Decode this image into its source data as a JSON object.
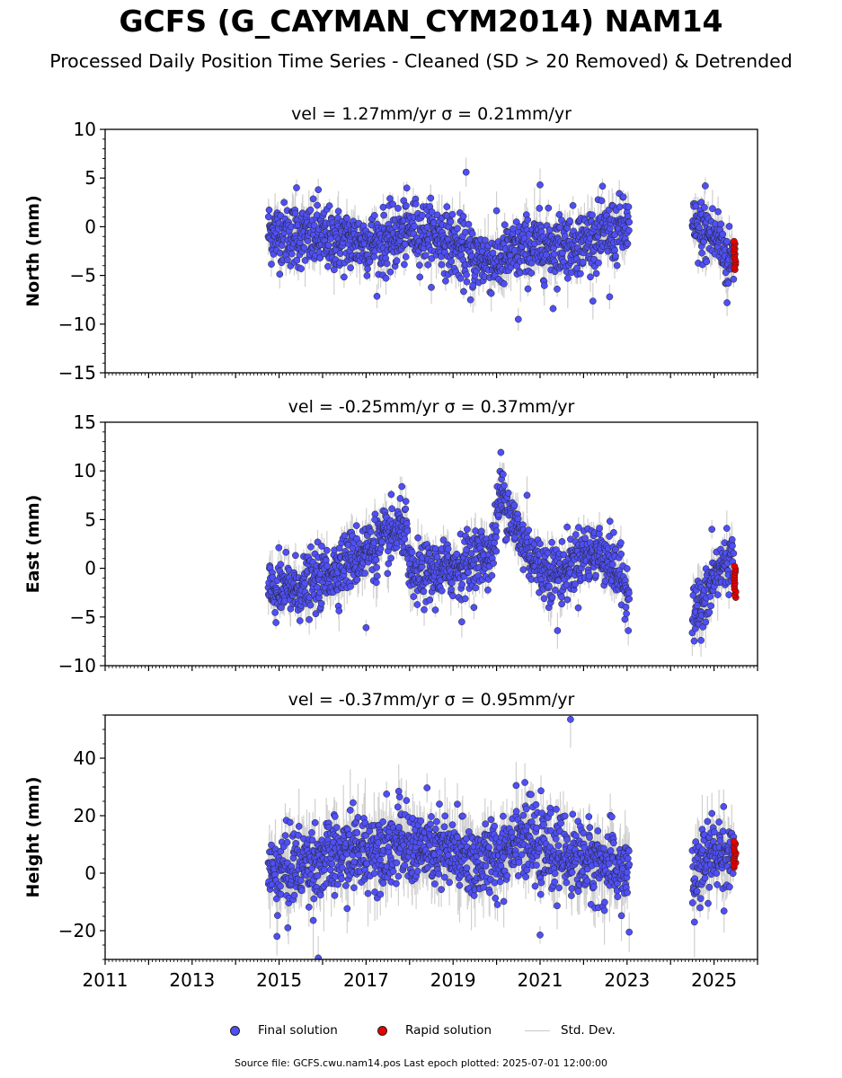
{
  "title": "GCFS (G_CAYMAN_CYM2014) NAM14",
  "subtitle": "Processed Daily Position Time Series - Cleaned (SD > 20 Removed) & Detrended",
  "legend": {
    "final": "Final solution",
    "rapid": "Rapid solution",
    "stddev": "Std. Dev."
  },
  "footer": "Source file: GCFS.cwu.nam14.pos  Last epoch plotted: 2025-07-01 12:00:00",
  "colors": {
    "final": "#4f4ff5",
    "rapid": "#e50000",
    "stddev": "#c8c8c8",
    "marker_edge": "#222222"
  },
  "chart_data": [
    {
      "type": "scatter",
      "title_vel": "vel = 1.27mm/yr",
      "title_sigma": "σ = 0.21mm/yr",
      "ylabel": "North (mm)",
      "xlim": [
        2011,
        2026
      ],
      "ylim": [
        -15,
        10
      ],
      "yticks": [
        -15,
        -10,
        -5,
        0,
        5,
        10
      ],
      "yminor": 1,
      "show_xtick_labels": false,
      "seg1": {
        "start": 2014.75,
        "end": 2023.05
      },
      "seg2": {
        "start": 2024.5,
        "end": 2025.45
      },
      "rapid": {
        "start": 2025.45,
        "end": 2025.5
      },
      "trend": [
        [
          2014.75,
          -0.5
        ],
        [
          2015.5,
          -1.0
        ],
        [
          2016.5,
          -1.5
        ],
        [
          2017.5,
          -1.6
        ],
        [
          2018.0,
          -0.3
        ],
        [
          2018.7,
          -1.0
        ],
        [
          2019.4,
          -3.0
        ],
        [
          2020.0,
          -3.6
        ],
        [
          2020.6,
          -2.2
        ],
        [
          2021.5,
          -1.8
        ],
        [
          2022.0,
          -1.5
        ],
        [
          2022.5,
          -0.8
        ],
        [
          2023.05,
          0.0
        ],
        [
          2024.5,
          -0.2
        ],
        [
          2024.9,
          -0.8
        ],
        [
          2025.1,
          -1.2
        ],
        [
          2025.3,
          -3.5
        ],
        [
          2025.5,
          -3.0
        ]
      ],
      "noise": 1.6,
      "sd_noise": 1.5,
      "outliers": [
        [
          2019.3,
          5.6
        ],
        [
          2021.0,
          4.3
        ],
        [
          2015.4,
          4.0
        ],
        [
          2015.9,
          3.8
        ],
        [
          2020.5,
          -9.5
        ],
        [
          2021.3,
          -8.4
        ],
        [
          2019.4,
          -7.5
        ],
        [
          2022.6,
          -7.2
        ],
        [
          2024.8,
          4.2
        ],
        [
          2025.3,
          -7.8
        ]
      ],
      "rapid_range": [
        -4.4,
        -1.5
      ]
    },
    {
      "type": "scatter",
      "title_vel": "vel = -0.25mm/yr",
      "title_sigma": "σ = 0.37mm/yr",
      "ylabel": "East (mm)",
      "xlim": [
        2011,
        2026
      ],
      "ylim": [
        -10,
        15
      ],
      "yticks": [
        -10,
        -5,
        0,
        5,
        10,
        15
      ],
      "yminor": 1,
      "show_xtick_labels": false,
      "seg1": {
        "start": 2014.75,
        "end": 2023.05
      },
      "seg2": {
        "start": 2024.5,
        "end": 2025.45
      },
      "rapid": {
        "start": 2025.45,
        "end": 2025.5
      },
      "trend": [
        [
          2014.75,
          -2.5
        ],
        [
          2015.5,
          -2.0
        ],
        [
          2016.0,
          -1.0
        ],
        [
          2016.5,
          0.5
        ],
        [
          2017.0,
          1.8
        ],
        [
          2017.5,
          3.0
        ],
        [
          2017.9,
          4.5
        ],
        [
          2018.0,
          -1.0
        ],
        [
          2018.5,
          -0.5
        ],
        [
          2019.0,
          0.0
        ],
        [
          2019.5,
          1.0
        ],
        [
          2019.9,
          1.5
        ],
        [
          2020.1,
          8.0
        ],
        [
          2020.5,
          3.5
        ],
        [
          2021.0,
          0.0
        ],
        [
          2021.5,
          -0.5
        ],
        [
          2022.0,
          1.5
        ],
        [
          2022.5,
          1.5
        ],
        [
          2023.05,
          -2.5
        ],
        [
          2024.5,
          -4.5
        ],
        [
          2024.8,
          -3.5
        ],
        [
          2025.0,
          -1.0
        ],
        [
          2025.3,
          1.0
        ],
        [
          2025.45,
          0.5
        ]
      ],
      "noise": 1.5,
      "sd_noise": 1.5,
      "outliers": [
        [
          2020.1,
          11.9
        ],
        [
          2017.2,
          5.0
        ],
        [
          2020.7,
          7.5
        ],
        [
          2019.2,
          -5.5
        ],
        [
          2021.4,
          -6.4
        ],
        [
          2017.0,
          -6.1
        ],
        [
          2024.7,
          -7.4
        ],
        [
          2024.95,
          4.0
        ]
      ],
      "rapid_range": [
        -3.0,
        0.2
      ]
    },
    {
      "type": "scatter",
      "title_vel": "vel = -0.37mm/yr",
      "title_sigma": "σ = 0.95mm/yr",
      "ylabel": "Height (mm)",
      "xlim": [
        2011,
        2026
      ],
      "ylim": [
        -30,
        55
      ],
      "yticks": [
        -20,
        0,
        20,
        40
      ],
      "yminor": 5,
      "show_xtick_labels": true,
      "xticks": [
        2011,
        2013,
        2015,
        2017,
        2019,
        2021,
        2023,
        2025
      ],
      "seg1": {
        "start": 2014.75,
        "end": 2023.05
      },
      "seg2": {
        "start": 2024.5,
        "end": 2025.45
      },
      "rapid": {
        "start": 2025.45,
        "end": 2025.5
      },
      "trend": [
        [
          2014.75,
          0.0
        ],
        [
          2015.5,
          3.0
        ],
        [
          2016.5,
          6.0
        ],
        [
          2017.5,
          10.0
        ],
        [
          2018.5,
          8.0
        ],
        [
          2019.5,
          4.0
        ],
        [
          2020.0,
          5.0
        ],
        [
          2020.5,
          14.0
        ],
        [
          2021.0,
          8.0
        ],
        [
          2022.0,
          5.0
        ],
        [
          2023.05,
          0.0
        ],
        [
          2024.5,
          -2.0
        ],
        [
          2025.0,
          7.0
        ],
        [
          2025.45,
          6.0
        ]
      ],
      "noise": 6.5,
      "sd_noise": 8,
      "outliers": [
        [
          2021.7,
          53.5
        ],
        [
          2015.9,
          -29.5
        ],
        [
          2014.95,
          -22.0
        ],
        [
          2021.0,
          -21.5
        ],
        [
          2023.05,
          -20.5
        ],
        [
          2015.2,
          -19.0
        ],
        [
          2017.75,
          28.5
        ],
        [
          2020.45,
          30.5
        ],
        [
          2024.55,
          -17.0
        ],
        [
          2016.7,
          24.5
        ],
        [
          2019.1,
          24.0
        ]
      ],
      "rapid_range": [
        2.0,
        11.0
      ]
    }
  ]
}
